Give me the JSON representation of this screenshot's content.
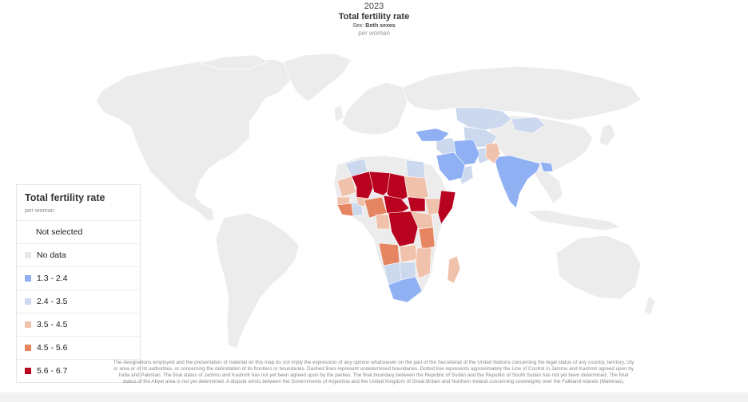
{
  "header": {
    "year": "2023",
    "title": "Total fertility rate",
    "subtitle_prefix": "Sex: ",
    "subtitle_value": "Both sexes",
    "unit": "per woman"
  },
  "legend": {
    "title": "Total fertility rate",
    "unit": "per woman",
    "items": [
      {
        "label": "Not selected",
        "color": null
      },
      {
        "label": "No data",
        "color": "#e8e8e8"
      },
      {
        "label": "1.3 - 2.4",
        "color": "#8fb0f2"
      },
      {
        "label": "2.4 - 3.5",
        "color": "#cbd8ee"
      },
      {
        "label": "3.5 - 4.5",
        "color": "#f1c2ab"
      },
      {
        "label": "4.5 - 5.6",
        "color": "#e58562"
      },
      {
        "label": "5.6 - 6.7",
        "color": "#b9021f"
      }
    ]
  },
  "colors": {
    "land_default": "#ececec",
    "border": "#ffffff",
    "class_1": "#8fb0f2",
    "class_2": "#cbd8ee",
    "class_3": "#f1c2ab",
    "class_4": "#e58562",
    "class_5": "#b9021f"
  },
  "disclaimer": "The designations employed and the presentation of material on this map do not imply the expression of any opinion whatsoever on the part of the Secretariat of the United Nations concerning the legal status of any country, territory, city or area or of its authorities, or concerning the delimitation of its frontiers or boundaries. Dashed lines represent undetermined boundaries. Dotted line represents approximately the Line of Control in Jammu and Kashmir agreed upon by India and Pakistan. The final status of Jammu and Kashmir has not yet been agreed upon by the parties. The final boundary between the Republic of Sudan and the Republic of South Sudan has not yet been determined. The final status of the Abyei area is not yet determined. A dispute exists between the Governments of Argentina and the United Kingdom of Great Britain and Northern Ireland concerning sovereignty over the Falkland Islands (Malvinas)."
}
